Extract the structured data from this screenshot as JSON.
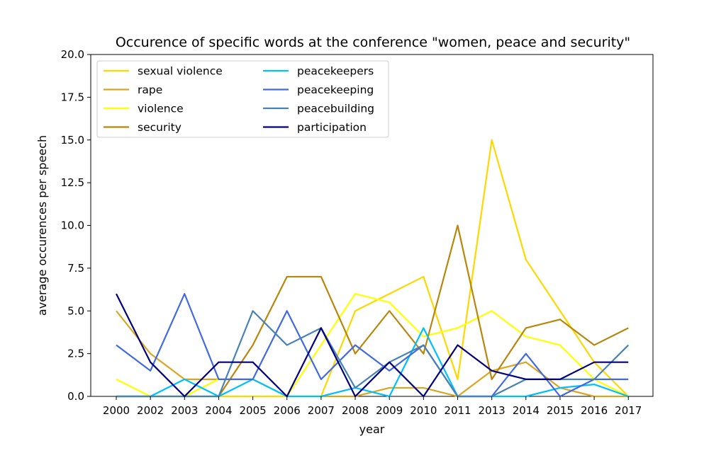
{
  "chart_data": {
    "type": "line",
    "title": "Occurence of specific words at the conference \"women, peace and security\"",
    "xlabel": "year",
    "ylabel": "average occurences per speech",
    "categories": [
      "2000",
      "2002",
      "2003",
      "2004",
      "2005",
      "2006",
      "2007",
      "2008",
      "2009",
      "2010",
      "2011",
      "2013",
      "2014",
      "2015",
      "2016",
      "2017"
    ],
    "ylim": [
      0,
      20
    ],
    "yticks": [
      "0.0",
      "2.5",
      "5.0",
      "7.5",
      "10.0",
      "12.5",
      "15.0",
      "17.5",
      "20.0"
    ],
    "grid": false,
    "legend_position": "top-left",
    "legend_columns": 2,
    "series": [
      {
        "name": "sexual violence",
        "color": "#FFD700",
        "values": [
          0,
          0,
          0,
          0,
          0,
          0,
          0,
          5,
          6,
          7,
          1,
          15,
          8,
          5,
          2,
          0
        ]
      },
      {
        "name": "rape",
        "color": "#DAA520",
        "values": [
          5,
          2.5,
          1,
          1,
          1,
          0,
          0,
          0,
          0.5,
          0.5,
          0,
          1.5,
          2,
          0.5,
          0,
          0
        ]
      },
      {
        "name": "violence",
        "color": "#FFFF00",
        "values": [
          1,
          0,
          0,
          1,
          1,
          0,
          3,
          6,
          5.5,
          3.5,
          4,
          5,
          3.5,
          3,
          1,
          0
        ]
      },
      {
        "name": "security",
        "color": "#B8860B",
        "values": [
          0,
          0,
          0,
          0,
          3,
          7,
          7,
          2.5,
          5,
          2.5,
          10,
          1,
          4,
          4.5,
          3,
          4
        ]
      },
      {
        "name": "peacekeepers",
        "color": "#00BFFF",
        "values": [
          0,
          0,
          1,
          0,
          1,
          0,
          0,
          0.5,
          0,
          4,
          0,
          0,
          0,
          0.5,
          0.7,
          0
        ]
      },
      {
        "name": "peacekeeping",
        "color": "#4169E1",
        "values": [
          3,
          1.5,
          6,
          1,
          1,
          5,
          1,
          3,
          1.5,
          3,
          0,
          0,
          2.5,
          0,
          1,
          1
        ]
      },
      {
        "name": "peacebuilding",
        "color": "#4682B4",
        "values": [
          0,
          0,
          0,
          0,
          5,
          3,
          4,
          0.5,
          2,
          3,
          0,
          0,
          1,
          1,
          1,
          3
        ]
      },
      {
        "name": "participation",
        "color": "#000080",
        "values": [
          6,
          2,
          0,
          2,
          2,
          0,
          4,
          0,
          2,
          0,
          3,
          1.5,
          1,
          1,
          2,
          2
        ]
      }
    ]
  }
}
